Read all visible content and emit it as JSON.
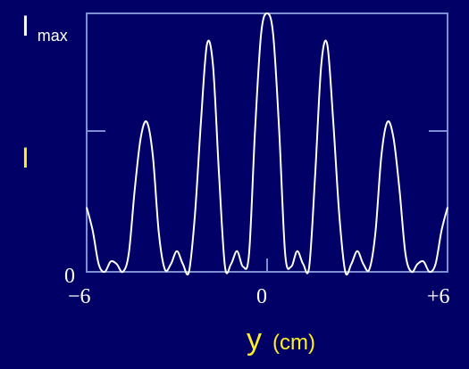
{
  "colors": {
    "background": "#000066",
    "frame": "#7f8fd6",
    "curve": "#ffffff",
    "ylabel": "#ffee22",
    "xlabel": "#ffee22",
    "tick_text": "#ffffff"
  },
  "chart_data": {
    "type": "line",
    "title": "",
    "xlabel": "y",
    "xunit": "(cm)",
    "ylabel": "I",
    "ymax_label_main": "I",
    "ymax_label_sub": "max",
    "ymin_label": "0",
    "x_tick_labels": [
      "−6",
      "0",
      "+6"
    ],
    "x_ticks": [
      -6,
      0,
      6
    ],
    "y_ticks": [
      0.5
    ],
    "xlim": [
      -6,
      6
    ],
    "ylim": [
      0,
      1
    ],
    "grid": false,
    "legend": "none",
    "series": [
      {
        "x": [
          -6.0,
          -5.8,
          -5.6,
          -5.4,
          -5.2,
          -5.0,
          -4.8,
          -4.6,
          -4.4,
          -4.2,
          -4.0,
          -3.8,
          -3.6,
          -3.4,
          -3.2,
          -3.0,
          -2.8,
          -2.6,
          -2.4,
          -2.2,
          -2.0,
          -1.8,
          -1.6,
          -1.4,
          -1.2,
          -1.0,
          -0.8,
          -0.6,
          -0.4,
          -0.2,
          0.0,
          0.2,
          0.4,
          0.6,
          0.8,
          1.0,
          1.2,
          1.4,
          1.6,
          1.8,
          2.0,
          2.2,
          2.4,
          2.6,
          2.8,
          3.0,
          3.2,
          3.4,
          3.6,
          3.8,
          4.0,
          4.2,
          4.4,
          4.6,
          4.8,
          5.0,
          5.2,
          5.4,
          5.6,
          5.8,
          6.0
        ],
        "values": [
          0.25,
          0.16,
          0.03,
          0.0,
          0.04,
          0.03,
          0.0,
          0.07,
          0.32,
          0.52,
          0.58,
          0.45,
          0.15,
          0.01,
          0.03,
          0.08,
          0.03,
          0.0,
          0.22,
          0.58,
          0.88,
          0.8,
          0.38,
          0.02,
          0.03,
          0.08,
          0.02,
          0.07,
          0.55,
          0.92,
          1.0,
          0.92,
          0.55,
          0.07,
          0.02,
          0.08,
          0.03,
          0.02,
          0.38,
          0.8,
          0.88,
          0.58,
          0.22,
          0.0,
          0.03,
          0.08,
          0.03,
          0.01,
          0.15,
          0.45,
          0.58,
          0.52,
          0.32,
          0.07,
          0.0,
          0.03,
          0.04,
          0.0,
          0.03,
          0.16,
          0.25
        ]
      }
    ]
  }
}
